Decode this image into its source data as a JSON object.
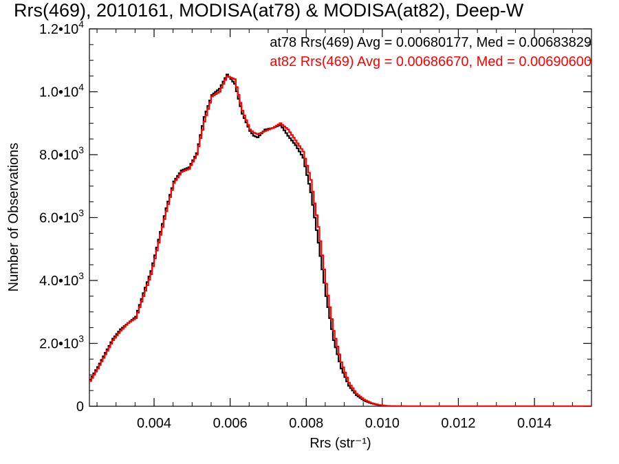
{
  "chart_data": {
    "type": "line",
    "title": "Rrs(469), 2010161, MODISA(at78) & MODISA(at82), Deep-W",
    "xlabel": "Rrs (str⁻¹)",
    "ylabel": "Number of Observations",
    "xlim": [
      0.0023,
      0.0155
    ],
    "ylim": [
      0,
      12000
    ],
    "x_ticks": [
      {
        "value": 0.004,
        "label": "0.004"
      },
      {
        "value": 0.006,
        "label": "0.006"
      },
      {
        "value": 0.008,
        "label": "0.008"
      },
      {
        "value": 0.01,
        "label": "0.010"
      },
      {
        "value": 0.012,
        "label": "0.012"
      },
      {
        "value": 0.014,
        "label": "0.014"
      }
    ],
    "y_ticks": [
      {
        "value": 0,
        "mantissa": "0",
        "exponent": ""
      },
      {
        "value": 2000,
        "mantissa": "2.0•10",
        "exponent": "3"
      },
      {
        "value": 4000,
        "mantissa": "4.0•10",
        "exponent": "3"
      },
      {
        "value": 6000,
        "mantissa": "6.0•10",
        "exponent": "3"
      },
      {
        "value": 8000,
        "mantissa": "8.0•10",
        "exponent": "3"
      },
      {
        "value": 10000,
        "mantissa": "1.0•10",
        "exponent": "4"
      },
      {
        "value": 12000,
        "mantissa": "1.2•10",
        "exponent": "4"
      }
    ],
    "grid": false,
    "legend_position": "top-right",
    "annotations": [
      {
        "text": "at78 Rrs(469) Avg = 0.00680177, Med = 0.00683829",
        "color": "#000000"
      },
      {
        "text": "at82 Rrs(469) Avg = 0.00686670, Med = 0.00690600",
        "color": "#ff0000"
      }
    ],
    "series": [
      {
        "color": "#000000",
        "x": [
          0.0023,
          0.0025,
          0.0027,
          0.0029,
          0.0031,
          0.0033,
          0.0035,
          0.0037,
          0.0039,
          0.0041,
          0.0043,
          0.0045,
          0.0047,
          0.0049,
          0.0051,
          0.0053,
          0.0055,
          0.0057,
          0.0059,
          0.0061,
          0.0063,
          0.0065,
          0.0066,
          0.0067,
          0.0069,
          0.0071,
          0.0073,
          0.0075,
          0.0077,
          0.0079,
          0.0081,
          0.0083,
          0.0085,
          0.0087,
          0.0089,
          0.0091,
          0.0093,
          0.0095,
          0.0097,
          0.0099,
          0.0101,
          0.0103,
          0.0105,
          0.0107,
          0.0109,
          0.0111,
          0.0113,
          0.0115,
          0.0117,
          0.012,
          0.0125,
          0.013,
          0.0135,
          0.014,
          0.0145,
          0.015,
          0.0155
        ],
        "y": [
          850,
          1250,
          1700,
          2150,
          2450,
          2650,
          2850,
          3600,
          4300,
          5300,
          6300,
          7150,
          7500,
          7600,
          8050,
          9200,
          9900,
          10100,
          10550,
          10250,
          9300,
          8750,
          8600,
          8550,
          8800,
          8850,
          8950,
          8600,
          8300,
          7900,
          6800,
          5200,
          3500,
          2100,
          1200,
          650,
          350,
          180,
          90,
          30,
          10,
          4,
          2,
          1,
          0,
          0,
          0,
          0,
          0,
          0,
          0,
          0,
          0,
          0,
          0,
          0,
          0
        ]
      },
      {
        "color": "#ff0000",
        "x": [
          0.0023,
          0.0025,
          0.0027,
          0.0029,
          0.0031,
          0.0033,
          0.0035,
          0.0037,
          0.0039,
          0.0041,
          0.0043,
          0.0045,
          0.0047,
          0.0049,
          0.0051,
          0.0053,
          0.0055,
          0.0057,
          0.0059,
          0.0061,
          0.0063,
          0.0065,
          0.0066,
          0.0067,
          0.0069,
          0.0071,
          0.0073,
          0.0075,
          0.0077,
          0.0079,
          0.0081,
          0.0083,
          0.0085,
          0.0087,
          0.0089,
          0.0091,
          0.0093,
          0.0095,
          0.0097,
          0.0099,
          0.0101,
          0.0103,
          0.0105,
          0.0107,
          0.0109,
          0.0111,
          0.0113,
          0.0115,
          0.0117,
          0.012,
          0.0125,
          0.013,
          0.0135,
          0.014,
          0.0145,
          0.015,
          0.0155
        ],
        "y": [
          800,
          1200,
          1650,
          2100,
          2400,
          2650,
          2800,
          3500,
          4200,
          5200,
          6200,
          7100,
          7450,
          7550,
          8000,
          9050,
          9850,
          10000,
          10500,
          10400,
          9400,
          8800,
          8700,
          8650,
          8750,
          8850,
          9000,
          8800,
          8450,
          8100,
          7200,
          5700,
          3900,
          2400,
          1400,
          750,
          400,
          210,
          100,
          40,
          15,
          5,
          3,
          1,
          0,
          0,
          0,
          0,
          0,
          0,
          0,
          0,
          0,
          0,
          0,
          0,
          0
        ]
      }
    ]
  }
}
